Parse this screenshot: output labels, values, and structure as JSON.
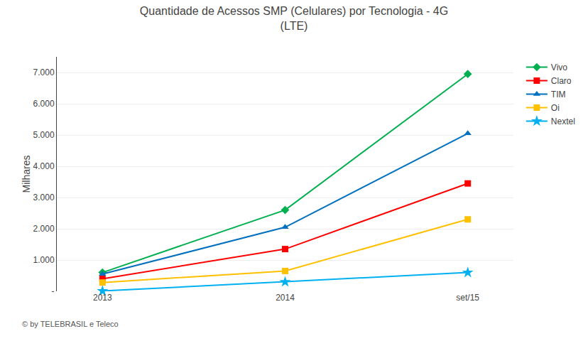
{
  "chart_data": {
    "type": "line",
    "title": "Quantidade de Acessos SMP (Celulares) por Tecnologia - 4G\n(LTE)",
    "ylabel": "Milhares",
    "categories": [
      "2013",
      "2014",
      "set/15"
    ],
    "series": [
      {
        "name": "Vivo",
        "color": "#00B050",
        "marker": "diamond",
        "values": [
          600,
          2600,
          6950
        ]
      },
      {
        "name": "Claro",
        "color": "#FF0000",
        "marker": "square",
        "values": [
          400,
          1350,
          3450
        ]
      },
      {
        "name": "TIM",
        "color": "#0070C0",
        "marker": "triangle-up",
        "values": [
          550,
          2050,
          5050
        ]
      },
      {
        "name": "Oi",
        "color": "#FFC000",
        "marker": "square",
        "values": [
          280,
          650,
          2300
        ]
      },
      {
        "name": "Nextel",
        "color": "#00B0F0",
        "marker": "star",
        "values": [
          10,
          300,
          600
        ]
      }
    ],
    "ylim": [
      0,
      7500
    ],
    "yticks": [
      {
        "value": 0,
        "label": "-"
      },
      {
        "value": 1000,
        "label": "1.000"
      },
      {
        "value": 2000,
        "label": "2.000"
      },
      {
        "value": 3000,
        "label": "3.000"
      },
      {
        "value": 4000,
        "label": "4.000"
      },
      {
        "value": 5000,
        "label": "5.000"
      },
      {
        "value": 6000,
        "label": "6.000"
      },
      {
        "value": 7000,
        "label": "7.000"
      }
    ],
    "grid": true,
    "legend": "right",
    "annotations": [
      "© by TELEBRASIL e Teleco"
    ]
  }
}
